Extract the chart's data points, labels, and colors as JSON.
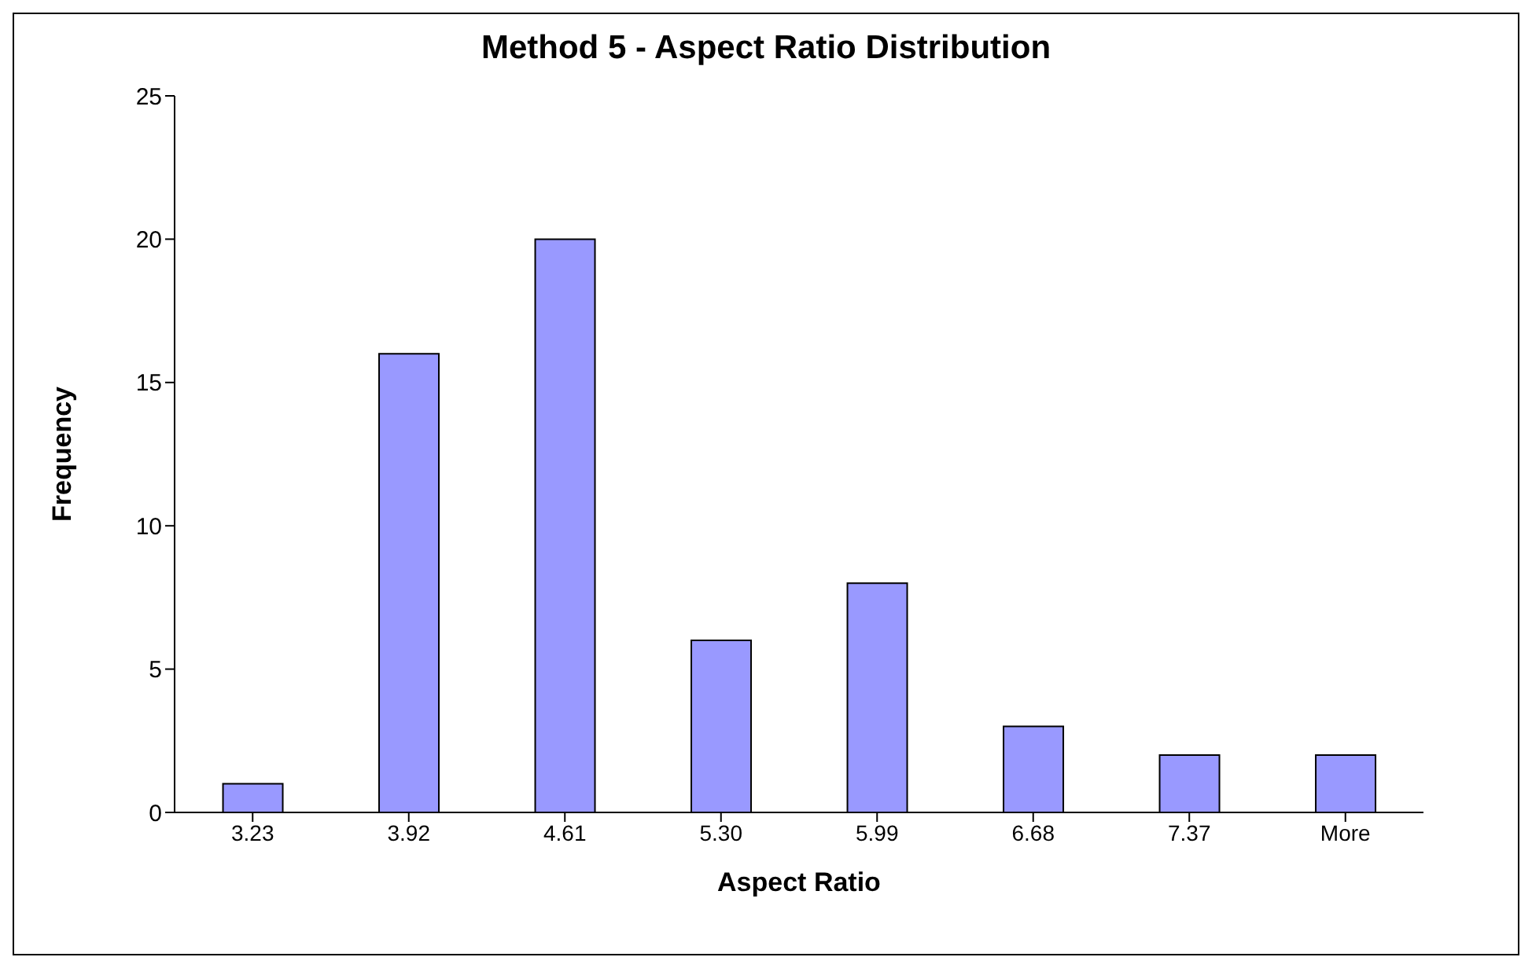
{
  "chart_data": {
    "type": "bar",
    "title": "Method 5 - Aspect Ratio Distribution",
    "xlabel": "Aspect Ratio",
    "ylabel": "Frequency",
    "categories": [
      "3.23",
      "3.92",
      "4.61",
      "5.30",
      "5.99",
      "6.68",
      "7.37",
      "More"
    ],
    "values": [
      1,
      16,
      20,
      6,
      8,
      3,
      2,
      2
    ],
    "color": "#9999ff",
    "ylim": [
      0,
      25
    ],
    "yticks": [
      0,
      5,
      10,
      15,
      20,
      25
    ]
  }
}
